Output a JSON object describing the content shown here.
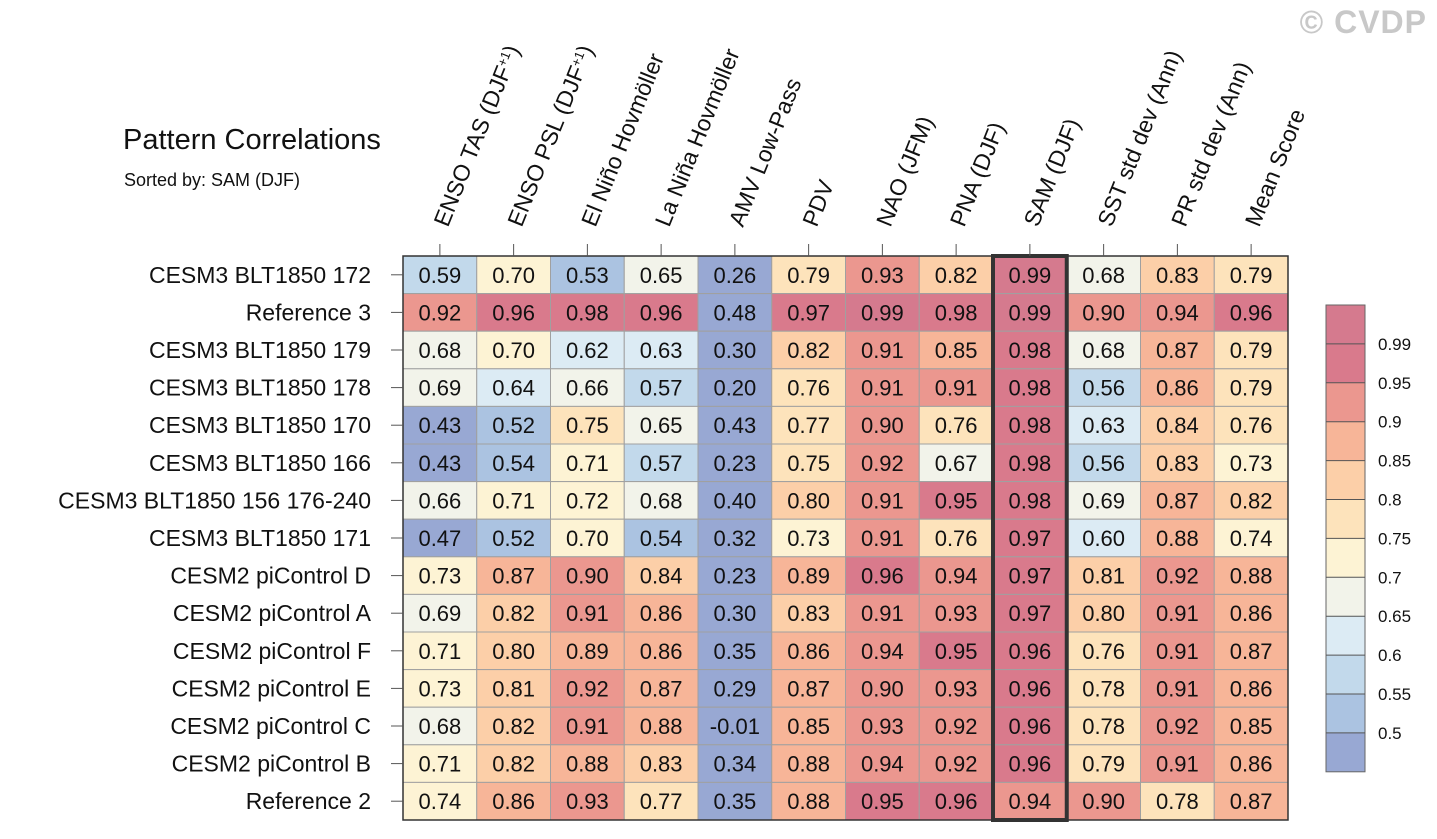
{
  "watermark": "© CVDP",
  "chart_data": {
    "type": "heatmap",
    "title": "Pattern Correlations",
    "subtitle": "Sorted by: SAM (DJF)",
    "highlighted_column": "SAM (DJF)",
    "columns": [
      "ENSO TAS (DJF+1)",
      "ENSO PSL (DJF+1)",
      "El Niño Hovmöller",
      "La Niña Hovmöller",
      "AMV Low-Pass",
      "PDV",
      "NAO (JFM)",
      "PNA (DJF)",
      "SAM (DJF)",
      "SST std dev (Ann)",
      "PR std dev (Ann)",
      "Mean Score"
    ],
    "rows": [
      "CESM3 BLT1850 172",
      "Reference 3",
      "CESM3 BLT1850 179",
      "CESM3 BLT1850 178",
      "CESM3 BLT1850 170",
      "CESM3 BLT1850 166",
      "CESM3 BLT1850 156 176-240",
      "CESM3 BLT1850 171",
      "CESM2 piControl D",
      "CESM2 piControl A",
      "CESM2 piControl F",
      "CESM2 piControl E",
      "CESM2 piControl C",
      "CESM2 piControl B",
      "Reference 2"
    ],
    "values": [
      [
        "0.59",
        "0.70",
        "0.53",
        "0.65",
        "0.26",
        "0.79",
        "0.93",
        "0.82",
        "0.99",
        "0.68",
        "0.83",
        "0.79"
      ],
      [
        "0.92",
        "0.96",
        "0.98",
        "0.96",
        "0.48",
        "0.97",
        "0.99",
        "0.98",
        "0.99",
        "0.90",
        "0.94",
        "0.96"
      ],
      [
        "0.68",
        "0.70",
        "0.62",
        "0.63",
        "0.30",
        "0.82",
        "0.91",
        "0.85",
        "0.98",
        "0.68",
        "0.87",
        "0.79"
      ],
      [
        "0.69",
        "0.64",
        "0.66",
        "0.57",
        "0.20",
        "0.76",
        "0.91",
        "0.91",
        "0.98",
        "0.56",
        "0.86",
        "0.79"
      ],
      [
        "0.43",
        "0.52",
        "0.75",
        "0.65",
        "0.43",
        "0.77",
        "0.90",
        "0.76",
        "0.98",
        "0.63",
        "0.84",
        "0.76"
      ],
      [
        "0.43",
        "0.54",
        "0.71",
        "0.57",
        "0.23",
        "0.75",
        "0.92",
        "0.67",
        "0.98",
        "0.56",
        "0.83",
        "0.73"
      ],
      [
        "0.66",
        "0.71",
        "0.72",
        "0.68",
        "0.40",
        "0.80",
        "0.91",
        "0.95",
        "0.98",
        "0.69",
        "0.87",
        "0.82"
      ],
      [
        "0.47",
        "0.52",
        "0.70",
        "0.54",
        "0.32",
        "0.73",
        "0.91",
        "0.76",
        "0.97",
        "0.60",
        "0.88",
        "0.74"
      ],
      [
        "0.73",
        "0.87",
        "0.90",
        "0.84",
        "0.23",
        "0.89",
        "0.96",
        "0.94",
        "0.97",
        "0.81",
        "0.92",
        "0.88"
      ],
      [
        "0.69",
        "0.82",
        "0.91",
        "0.86",
        "0.30",
        "0.83",
        "0.91",
        "0.93",
        "0.97",
        "0.80",
        "0.91",
        "0.86"
      ],
      [
        "0.71",
        "0.80",
        "0.89",
        "0.86",
        "0.35",
        "0.86",
        "0.94",
        "0.95",
        "0.96",
        "0.76",
        "0.91",
        "0.87"
      ],
      [
        "0.73",
        "0.81",
        "0.92",
        "0.87",
        "0.29",
        "0.87",
        "0.90",
        "0.93",
        "0.96",
        "0.78",
        "0.91",
        "0.86"
      ],
      [
        "0.68",
        "0.82",
        "0.91",
        "0.88",
        "-0.01",
        "0.85",
        "0.93",
        "0.92",
        "0.96",
        "0.78",
        "0.92",
        "0.85"
      ],
      [
        "0.71",
        "0.82",
        "0.88",
        "0.83",
        "0.34",
        "0.88",
        "0.94",
        "0.92",
        "0.96",
        "0.79",
        "0.91",
        "0.86"
      ],
      [
        "0.74",
        "0.86",
        "0.93",
        "0.77",
        "0.35",
        "0.88",
        "0.95",
        "0.96",
        "0.94",
        "0.90",
        "0.78",
        "0.87"
      ]
    ],
    "colorbar": {
      "tick_labels": [
        "0.99",
        "0.95",
        "0.9",
        "0.85",
        "0.8",
        "0.75",
        "0.7",
        "0.65",
        "0.6",
        "0.55",
        "0.5"
      ],
      "thresholds": [
        0.5,
        0.55,
        0.6,
        0.65,
        0.7,
        0.75,
        0.8,
        0.85,
        0.9,
        0.95,
        0.99
      ],
      "colors": [
        "#98a8d3",
        "#abc3e1",
        "#c2d9eb",
        "#dcebf4",
        "#f2f3ea",
        "#fdf3d4",
        "#fde3bb",
        "#fccfa8",
        "#f7b598",
        "#eb978f",
        "#d97a8c",
        "#d57a8e"
      ]
    }
  }
}
